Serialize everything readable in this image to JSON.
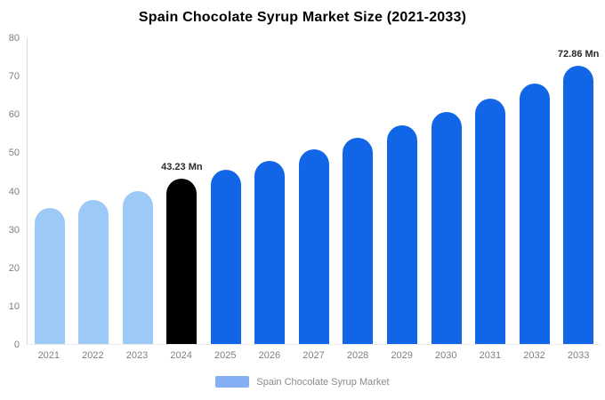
{
  "title": "Spain Chocolate Syrup Market Size (2021-2033)",
  "legend": {
    "label": "Spain Chocolate Syrup Market",
    "swatch_color": "#84aff5"
  },
  "colors": {
    "light_blue_bar": "#9dc9f7",
    "highlight_bar": "#000000",
    "blue_bar": "#1166e8",
    "axis_line": "#d9d9d9",
    "tick_text": "#808080",
    "value_label_text": "#2b2b2b"
  },
  "chart_data": {
    "type": "bar",
    "title": "Spain Chocolate Syrup Market Size (2021-2033)",
    "xlabel": "",
    "ylabel": "",
    "categories": [
      "2021",
      "2022",
      "2023",
      "2024",
      "2025",
      "2026",
      "2027",
      "2028",
      "2029",
      "2030",
      "2031",
      "2032",
      "2033"
    ],
    "values": [
      35.5,
      37.6,
      40.1,
      43.23,
      45.5,
      48.0,
      51.0,
      54.0,
      57.3,
      60.6,
      64.3,
      68.2,
      72.86
    ],
    "bar_labels": [
      "",
      "",
      "",
      "43.23 Mn",
      "",
      "",
      "",
      "",
      "",
      "",
      "",
      "",
      "72.86 Mn"
    ],
    "bar_colors": [
      "#9dc9f7",
      "#9dc9f7",
      "#9dc9f7",
      "#000000",
      "#1166e8",
      "#1166e8",
      "#1166e8",
      "#1166e8",
      "#1166e8",
      "#1166e8",
      "#1166e8",
      "#1166e8",
      "#1166e8"
    ],
    "ylim": [
      0,
      80
    ],
    "yticks": [
      0,
      10,
      20,
      30,
      40,
      50,
      60,
      70,
      80
    ],
    "grid": false,
    "legend_position": "bottom"
  }
}
